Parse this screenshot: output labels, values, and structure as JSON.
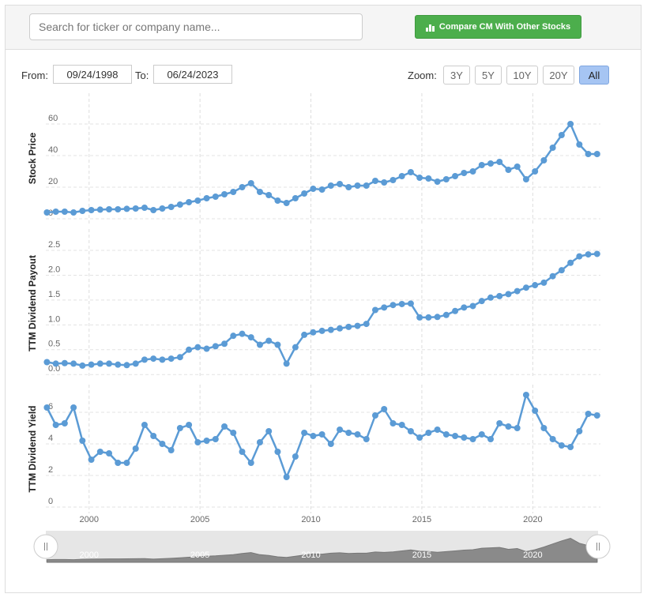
{
  "search": {
    "placeholder": "Search for ticker or company name..."
  },
  "compare_button": "Compare CM With Other Stocks",
  "range": {
    "from_label": "From:",
    "from": "09/24/1998",
    "to_label": "To:",
    "to": "06/24/2023"
  },
  "zoom": {
    "label": "Zoom:",
    "options": [
      "3Y",
      "5Y",
      "10Y",
      "20Y",
      "All"
    ],
    "active": 4
  },
  "chart_data": [
    {
      "type": "line",
      "ylabel": "Stock Price",
      "color": "#5b9bd5",
      "grid": true,
      "x": [
        1998.1,
        1998.5,
        1998.9,
        1999.3,
        1999.7,
        2000.1,
        2000.5,
        2000.9,
        2001.3,
        2001.7,
        2002.1,
        2002.5,
        2002.9,
        2003.3,
        2003.7,
        2004.1,
        2004.5,
        2004.9,
        2005.3,
        2005.7,
        2006.1,
        2006.5,
        2006.9,
        2007.3,
        2007.7,
        2008.1,
        2008.5,
        2008.9,
        2009.3,
        2009.7,
        2010.1,
        2010.5,
        2010.9,
        2011.3,
        2011.7,
        2012.1,
        2012.5,
        2012.9,
        2013.3,
        2013.7,
        2014.1,
        2014.5,
        2014.9,
        2015.3,
        2015.7,
        2016.1,
        2016.5,
        2016.9,
        2017.3,
        2017.7,
        2018.1,
        2018.5,
        2018.9,
        2019.3,
        2019.7,
        2020.1,
        2020.5,
        2020.9,
        2021.3,
        2021.7,
        2022.1,
        2022.5,
        2022.9
      ],
      "values": [
        4,
        4.5,
        4.5,
        4,
        5,
        5.5,
        5.8,
        6,
        6,
        6.3,
        6.5,
        7,
        5.5,
        6.5,
        7.5,
        9,
        10.5,
        11.5,
        13,
        14,
        15.5,
        17,
        20,
        22.5,
        17,
        15,
        11.5,
        10,
        13,
        16,
        19,
        18.5,
        21,
        22,
        20,
        21,
        21,
        24,
        23,
        24.5,
        27,
        29.5,
        26,
        25.5,
        23.5,
        25,
        27,
        29,
        30,
        34,
        35,
        36,
        31,
        33,
        25,
        30,
        37,
        45,
        53,
        60,
        47,
        41,
        41
      ],
      "xlim": [
        1998.05,
        2023.05
      ],
      "xticks": [
        2000,
        2005,
        2010,
        2015,
        2020
      ],
      "ylim": [
        -3,
        79.5
      ],
      "yticks": [
        0,
        20,
        40,
        60
      ]
    },
    {
      "type": "line",
      "ylabel": "TTM Dividend Payout",
      "color": "#5b9bd5",
      "grid": true,
      "x": [
        1998.1,
        1998.5,
        1998.9,
        1999.3,
        1999.7,
        2000.1,
        2000.5,
        2000.9,
        2001.3,
        2001.7,
        2002.1,
        2002.5,
        2002.9,
        2003.3,
        2003.7,
        2004.1,
        2004.5,
        2004.9,
        2005.3,
        2005.7,
        2006.1,
        2006.5,
        2006.9,
        2007.3,
        2007.7,
        2008.1,
        2008.5,
        2008.9,
        2009.3,
        2009.7,
        2010.1,
        2010.5,
        2010.9,
        2011.3,
        2011.7,
        2012.1,
        2012.5,
        2012.9,
        2013.3,
        2013.7,
        2014.1,
        2014.5,
        2014.9,
        2015.3,
        2015.7,
        2016.1,
        2016.5,
        2016.9,
        2017.3,
        2017.7,
        2018.1,
        2018.5,
        2018.9,
        2019.3,
        2019.7,
        2020.1,
        2020.5,
        2020.9,
        2021.3,
        2021.7,
        2022.1,
        2022.5,
        2022.9
      ],
      "values": [
        0.25,
        0.22,
        0.23,
        0.22,
        0.18,
        0.2,
        0.22,
        0.22,
        0.2,
        0.19,
        0.22,
        0.3,
        0.32,
        0.3,
        0.32,
        0.35,
        0.5,
        0.55,
        0.52,
        0.57,
        0.62,
        0.78,
        0.82,
        0.75,
        0.6,
        0.68,
        0.6,
        0.22,
        0.55,
        0.8,
        0.85,
        0.88,
        0.9,
        0.93,
        0.96,
        0.98,
        1.02,
        1.3,
        1.35,
        1.4,
        1.42,
        1.43,
        1.15,
        1.15,
        1.16,
        1.2,
        1.28,
        1.35,
        1.38,
        1.48,
        1.55,
        1.58,
        1.62,
        1.68,
        1.75,
        1.8,
        1.85,
        1.98,
        2.1,
        2.25,
        2.38,
        2.42,
        2.43
      ],
      "xlim": [
        1998.05,
        2023.05
      ],
      "xticks": [
        2000,
        2005,
        2010,
        2015,
        2020
      ],
      "ylim": [
        -0.06,
        2.93
      ],
      "yticks": [
        {
          "value": 0,
          "label": "0.0"
        },
        0.5,
        {
          "value": 1,
          "label": "1.0"
        },
        1.5,
        {
          "value": 2,
          "label": "2.0"
        },
        2.5
      ]
    },
    {
      "type": "line",
      "ylabel": "TTM Dividend Yield",
      "color": "#5b9bd5",
      "grid": true,
      "x": [
        1998.1,
        1998.5,
        1998.9,
        1999.3,
        1999.7,
        2000.1,
        2000.5,
        2000.9,
        2001.3,
        2001.7,
        2002.1,
        2002.5,
        2002.9,
        2003.3,
        2003.7,
        2004.1,
        2004.5,
        2004.9,
        2005.3,
        2005.7,
        2006.1,
        2006.5,
        2006.9,
        2007.3,
        2007.7,
        2008.1,
        2008.5,
        2008.9,
        2009.3,
        2009.7,
        2010.1,
        2010.5,
        2010.9,
        2011.3,
        2011.7,
        2012.1,
        2012.5,
        2012.9,
        2013.3,
        2013.7,
        2014.1,
        2014.5,
        2014.9,
        2015.3,
        2015.7,
        2016.1,
        2016.5,
        2016.9,
        2017.3,
        2017.7,
        2018.1,
        2018.5,
        2018.9,
        2019.3,
        2019.7,
        2020.1,
        2020.5,
        2020.9,
        2021.3,
        2021.7,
        2022.1,
        2022.5,
        2022.9
      ],
      "values": [
        6.3,
        5.2,
        5.3,
        6.3,
        4.2,
        3,
        3.5,
        3.4,
        2.8,
        2.8,
        3.7,
        5.2,
        4.5,
        4,
        3.6,
        5,
        5.2,
        4.1,
        4.2,
        4.3,
        5.1,
        4.7,
        3.5,
        2.8,
        4.1,
        4.8,
        3.5,
        1.9,
        3.2,
        4.7,
        4.5,
        4.6,
        4,
        4.9,
        4.7,
        4.6,
        4.3,
        5.8,
        6.2,
        5.3,
        5.2,
        4.8,
        4.4,
        4.7,
        4.9,
        4.6,
        4.5,
        4.4,
        4.3,
        4.6,
        4.3,
        5.3,
        5.1,
        5,
        7.1,
        6.1,
        5,
        4.3,
        3.9,
        3.8,
        4.8,
        5.9,
        5.8
      ],
      "xlim": [
        1998.05,
        2023.05
      ],
      "xticks": [
        2000,
        2005,
        2010,
        2015,
        2020
      ],
      "ylim": [
        -0.4,
        7.75
      ],
      "yticks": [
        0,
        2,
        4,
        6
      ]
    }
  ]
}
